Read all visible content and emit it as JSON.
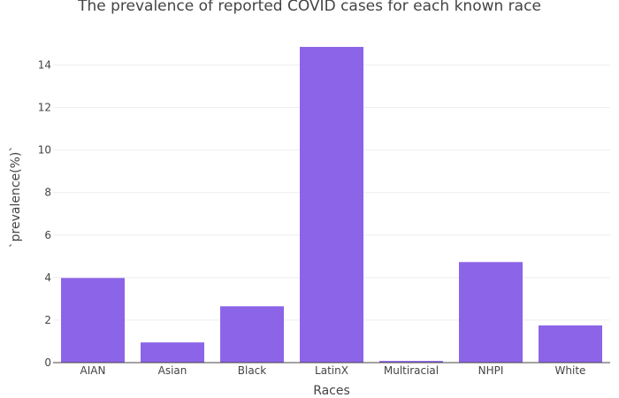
{
  "chart_data": {
    "type": "bar",
    "title": "The prevalence of reported COVID cases for each known race",
    "xlabel": "Races",
    "ylabel": "`prevalence(%)`",
    "categories": [
      "AIAN",
      "Asian",
      "Black",
      "LatinX",
      "Multiracial",
      "NHPI",
      "White"
    ],
    "values": [
      3.98,
      0.95,
      2.65,
      14.85,
      0.08,
      4.73,
      1.75
    ],
    "ylim": [
      0,
      15.6
    ],
    "yticks": [
      0,
      2,
      4,
      6,
      8,
      10,
      12,
      14
    ],
    "grid": true,
    "bar_color": "#8c64e8"
  }
}
